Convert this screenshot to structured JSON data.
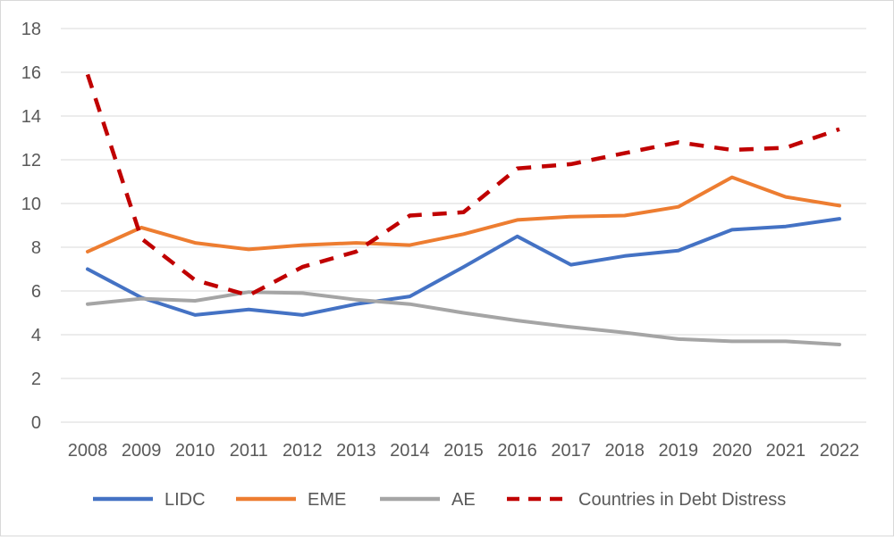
{
  "chart_data": {
    "type": "line",
    "title": "",
    "xlabel": "",
    "ylabel": "",
    "x": [
      "2008",
      "2009",
      "2010",
      "2011",
      "2012",
      "2013",
      "2014",
      "2015",
      "2016",
      "2017",
      "2018",
      "2019",
      "2020",
      "2021",
      "2022"
    ],
    "ylim": [
      0,
      18
    ],
    "yticks": [
      "0",
      "2",
      "4",
      "6",
      "8",
      "10",
      "12",
      "14",
      "16",
      "18"
    ],
    "grid": "horizontal",
    "legend_position": "bottom",
    "series": [
      {
        "name": "LIDC",
        "color": "#4472c4",
        "dash": "solid",
        "values": [
          7.0,
          5.7,
          4.9,
          5.15,
          4.9,
          5.4,
          5.75,
          7.1,
          8.5,
          7.2,
          7.6,
          7.85,
          8.8,
          8.95,
          9.3
        ]
      },
      {
        "name": "EME",
        "color": "#ed7d31",
        "dash": "solid",
        "values": [
          7.8,
          8.9,
          8.2,
          7.9,
          8.1,
          8.2,
          8.1,
          8.6,
          9.25,
          9.4,
          9.45,
          9.85,
          11.2,
          10.3,
          9.9
        ]
      },
      {
        "name": "AE",
        "color": "#a5a5a5",
        "dash": "solid",
        "values": [
          5.4,
          5.65,
          5.55,
          5.95,
          5.9,
          5.6,
          5.4,
          5.0,
          4.65,
          4.35,
          4.1,
          3.8,
          3.7,
          3.7,
          3.55
        ]
      },
      {
        "name": "Countries in Debt Distress",
        "color": "#c00000",
        "dash": "dashed",
        "values": [
          15.9,
          8.4,
          6.5,
          5.8,
          7.1,
          7.8,
          9.45,
          9.6,
          11.6,
          11.8,
          12.3,
          12.8,
          12.45,
          12.55,
          13.4
        ]
      }
    ]
  }
}
